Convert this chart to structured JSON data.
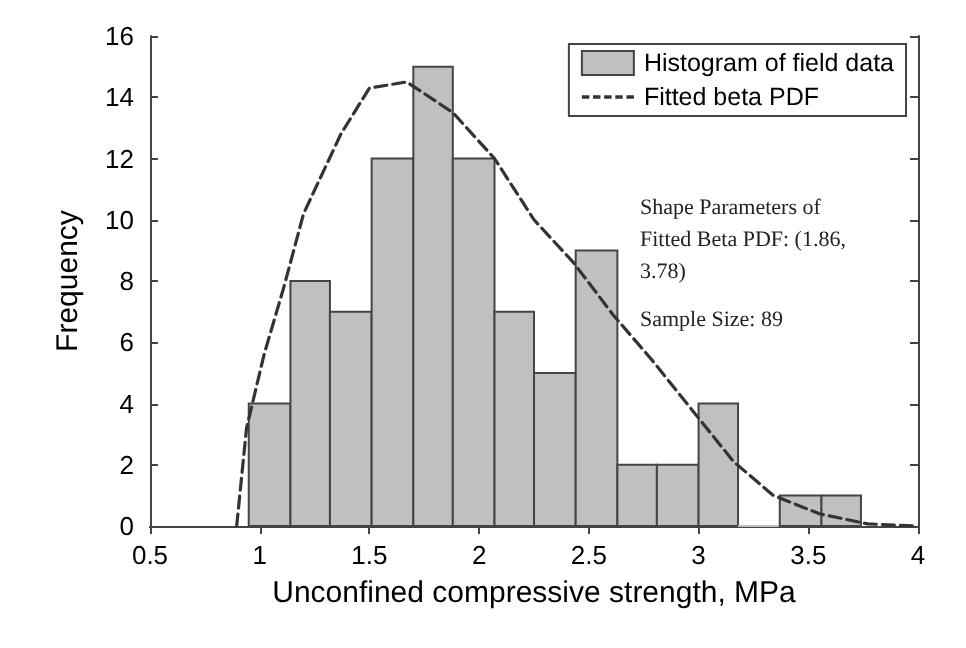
{
  "chart_data": {
    "type": "histogram",
    "xlabel": "Unconfined compressive strength, MPa",
    "ylabel": "Frequency",
    "xlim": [
      0.5,
      4
    ],
    "xticks": [
      0.5,
      1,
      1.5,
      2,
      2.5,
      3,
      3.5,
      4
    ],
    "ylim": [
      0,
      16
    ],
    "yticks": [
      0,
      2,
      4,
      6,
      8,
      10,
      12,
      14,
      16
    ],
    "grid": false,
    "legend": "top right",
    "annotations": [
      "Shape Parameters of Fitted Beta PDF: (1.86, 3.78)",
      "Sample Size: 89"
    ],
    "series": [
      {
        "name": "Histogram of field data",
        "color": "#c0c0c0",
        "bins": [
          0.95,
          1.14,
          1.32,
          1.51,
          1.7,
          1.88,
          2.07,
          2.25,
          2.44,
          2.63,
          2.81,
          3.0,
          3.18,
          3.37,
          3.56,
          3.74
        ],
        "values": [
          4,
          8,
          7,
          12,
          15,
          12,
          7,
          5,
          9,
          2,
          2,
          4,
          0,
          1,
          1
        ]
      },
      {
        "name": "Fitted beta PDF",
        "type": "line",
        "color": "#333333",
        "line_style": "dashed",
        "marker": "none",
        "x": [
          0.895,
          0.94,
          1.02,
          1.11,
          1.2,
          1.37,
          1.5,
          1.67,
          1.88,
          2.07,
          2.25,
          2.43,
          2.61,
          2.79,
          2.98,
          3.16,
          3.34,
          3.55,
          3.77,
          4.0
        ],
        "values": [
          0,
          3.2,
          5.6,
          7.8,
          10.2,
          12.8,
          14.3,
          14.5,
          13.5,
          12.0,
          10.0,
          8.6,
          6.9,
          5.4,
          3.7,
          2.1,
          1.0,
          0.4,
          0.07,
          0
        ]
      }
    ]
  }
}
